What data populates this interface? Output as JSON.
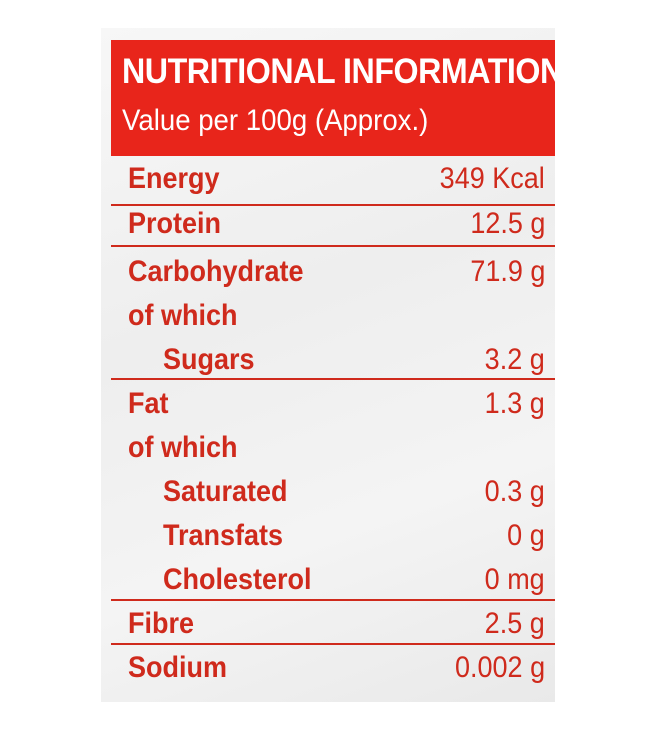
{
  "header": {
    "title": "NUTRITIONAL INFORMATION",
    "subtitle": "Value per 100g (Approx.)"
  },
  "rows": [
    {
      "label": "Energy",
      "value": "349 Kcal"
    },
    {
      "label": "Protein",
      "value": "12.5 g"
    },
    {
      "label": "Carbohydrate",
      "value": "71.9 g"
    },
    {
      "label": "of which",
      "value": ""
    },
    {
      "label": "Sugars",
      "value": "3.2 g"
    },
    {
      "label": "Fat",
      "value": "1.3 g"
    },
    {
      "label": "of which",
      "value": ""
    },
    {
      "label": "Saturated",
      "value": "0.3 g"
    },
    {
      "label": "Transfats",
      "value": "0 g"
    },
    {
      "label": "Cholesterol",
      "value": "0 mg"
    },
    {
      "label": "Fibre",
      "value": "2.5 g"
    },
    {
      "label": "Sodium",
      "value": "0.002 g"
    }
  ],
  "colors": {
    "header_bg": "#e8251b",
    "text": "#cf2a1c"
  }
}
